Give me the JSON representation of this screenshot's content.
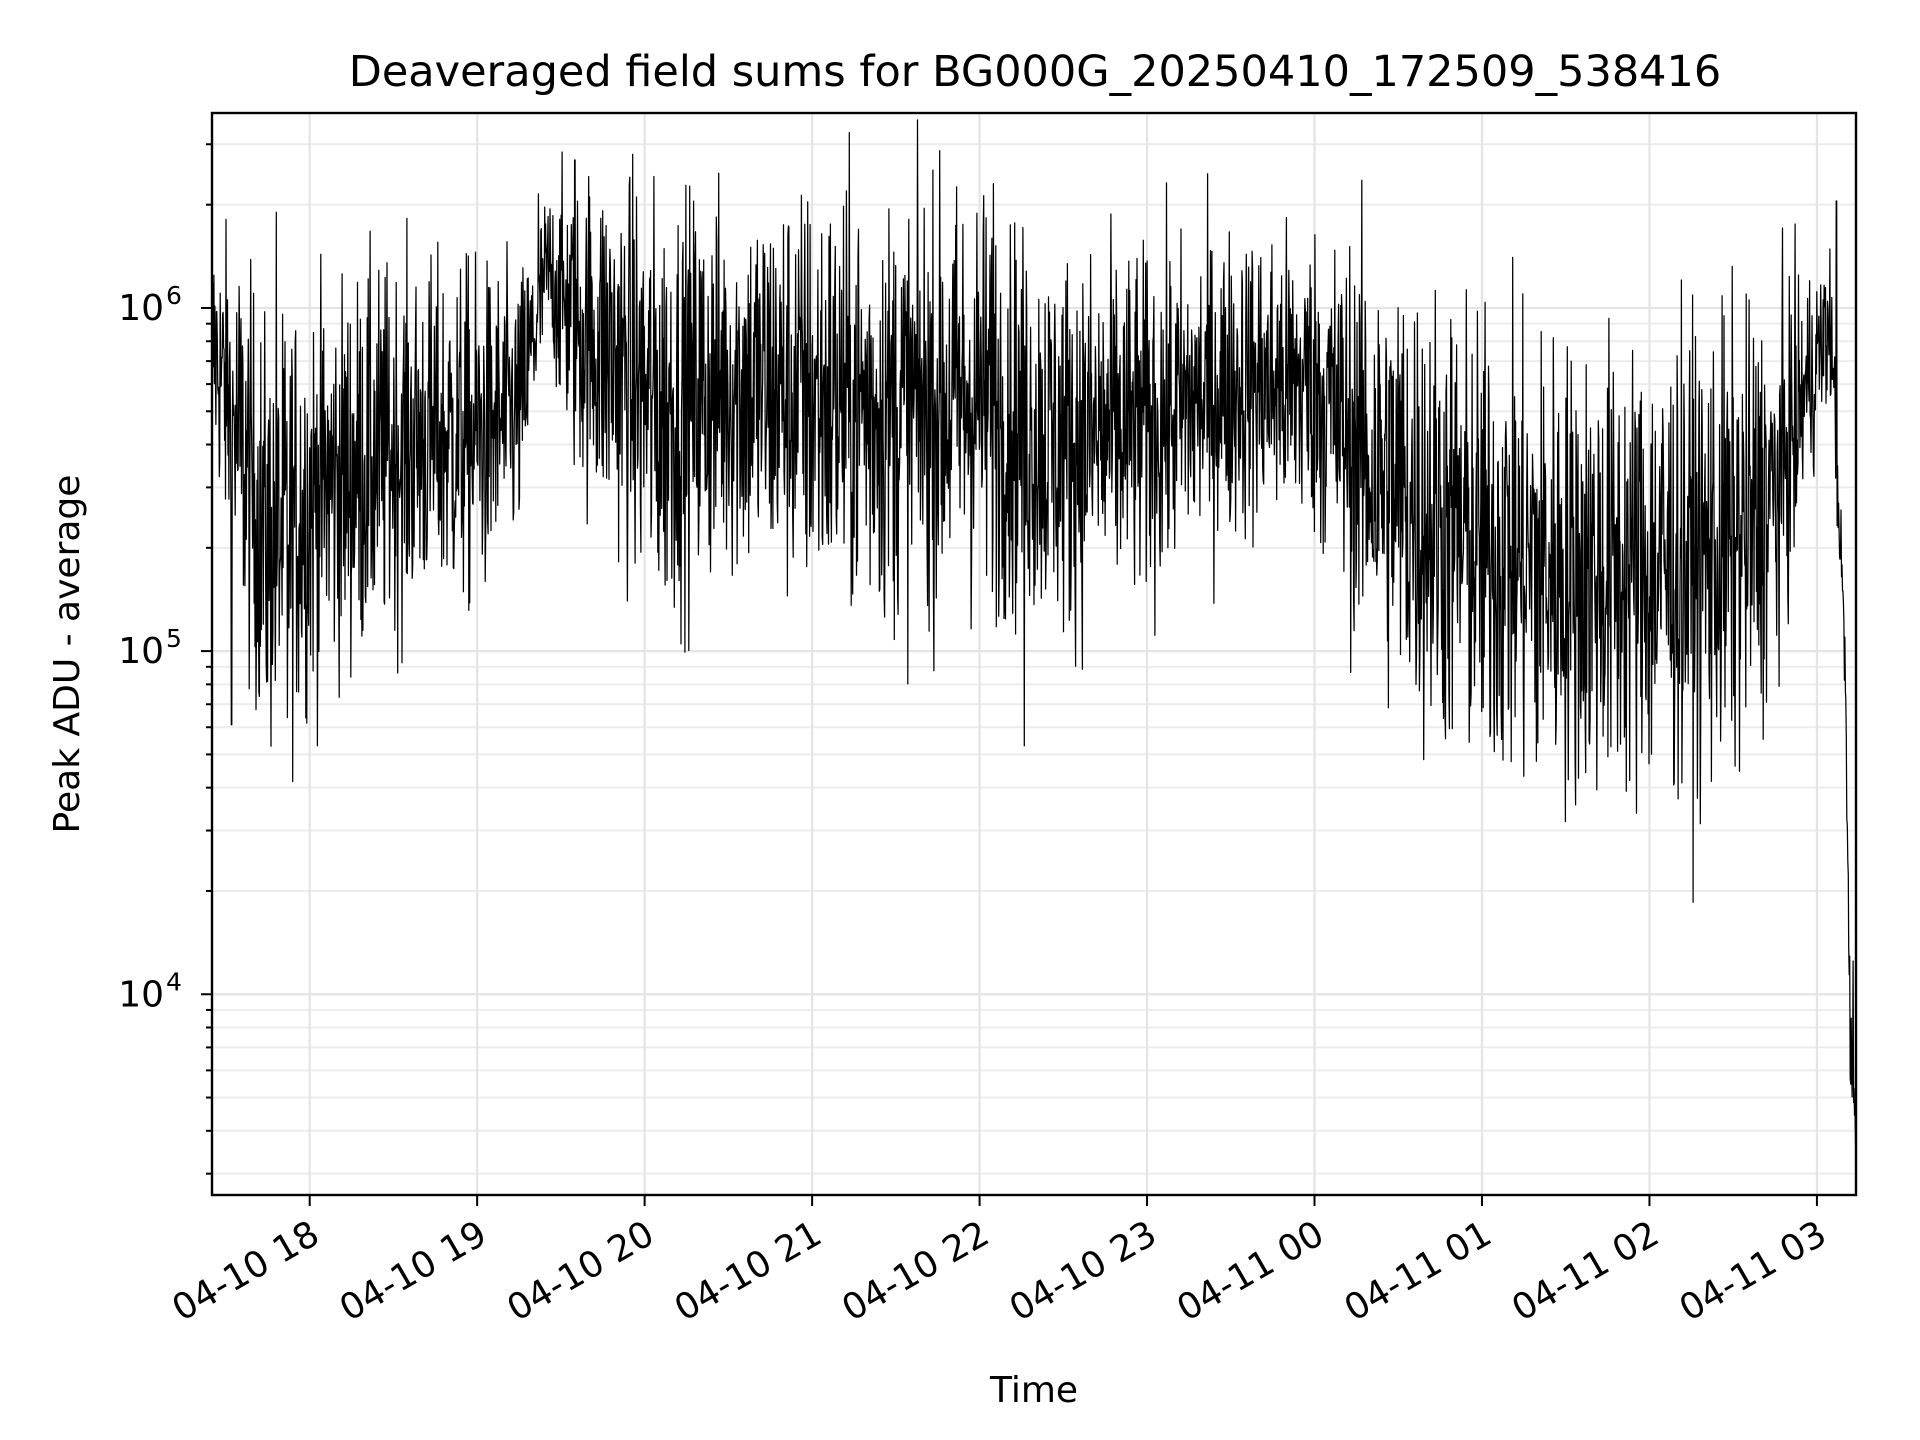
{
  "chart_data": {
    "type": "line",
    "title": "Deaveraged field sums for BG000G_20250410_172509_538416",
    "xlabel": "Time",
    "ylabel": "Peak ADU - average",
    "yscale": "log",
    "ylim": [
      2600,
      3700000
    ],
    "xlim": [
      "04-10 17:25",
      "04-11 03:14"
    ],
    "grid": true,
    "legend": "none",
    "line_color": "#000000",
    "x_ticks": [
      "04-10 18",
      "04-10 19",
      "04-10 20",
      "04-10 21",
      "04-10 22",
      "04-10 23",
      "04-11 00",
      "04-11 01",
      "04-11 02",
      "04-11 03"
    ],
    "y_ticks": [
      {
        "value": 10000,
        "base": "10",
        "exp": "4"
      },
      {
        "value": 100000,
        "base": "10",
        "exp": "5"
      },
      {
        "value": 1000000,
        "base": "10",
        "exp": "6"
      }
    ],
    "series": [
      {
        "x": [
          "04-10 17:25",
          "04-10 17:35",
          "04-10 17:45",
          "04-10 17:55",
          "04-10 18:05",
          "04-10 18:20",
          "04-10 18:40",
          "04-10 19:00",
          "04-10 19:15",
          "04-10 19:25",
          "04-10 19:35",
          "04-10 19:50",
          "04-10 20:05",
          "04-10 20:30",
          "04-10 21:00",
          "04-10 21:30",
          "04-10 22:00",
          "04-10 22:15",
          "04-10 22:30",
          "04-10 23:00",
          "04-10 23:30",
          "04-11 00:00",
          "04-11 00:20",
          "04-11 00:40",
          "04-11 01:00",
          "04-11 01:30",
          "04-11 02:00",
          "04-11 02:30",
          "04-11 02:45",
          "04-11 02:55",
          "04-11 03:05",
          "04-11 03:10",
          "04-11 03:12",
          "04-11 03:14"
        ],
        "center": [
          800000,
          400000,
          200000,
          250000,
          300000,
          350000,
          420000,
          420000,
          500000,
          1300000,
          900000,
          700000,
          500000,
          600000,
          550000,
          500000,
          550000,
          450000,
          400000,
          450000,
          600000,
          600000,
          350000,
          250000,
          200000,
          170000,
          170000,
          200000,
          280000,
          550000,
          900000,
          100000,
          6500,
          4200
        ],
        "spread": [
          0.3,
          0.5,
          0.55,
          0.55,
          0.5,
          0.5,
          0.45,
          0.45,
          0.35,
          0.2,
          0.4,
          0.5,
          0.55,
          0.5,
          0.55,
          0.55,
          0.55,
          0.5,
          0.5,
          0.45,
          0.4,
          0.4,
          0.55,
          0.6,
          0.6,
          0.6,
          0.6,
          0.6,
          0.5,
          0.3,
          0.2,
          0.1,
          0.2,
          0.1
        ],
        "spikes": [
          {
            "x": "04-10 17:48",
            "y": 1900000
          },
          {
            "x": "04-10 19:22",
            "y": 2150000
          },
          {
            "x": "04-10 19:35",
            "y": 2700000
          },
          {
            "x": "04-10 22:05",
            "y": 2300000
          },
          {
            "x": "04-11 03:07",
            "y": 2050000
          },
          {
            "x": "04-10 22:16",
            "y": 53000
          },
          {
            "x": "04-11 01:20",
            "y": 54000
          },
          {
            "x": "04-10 17:32",
            "y": 61000
          },
          {
            "x": "04-10 17:52",
            "y": 64000
          },
          {
            "x": "04-11 03:13",
            "y": 12500
          }
        ]
      }
    ]
  }
}
